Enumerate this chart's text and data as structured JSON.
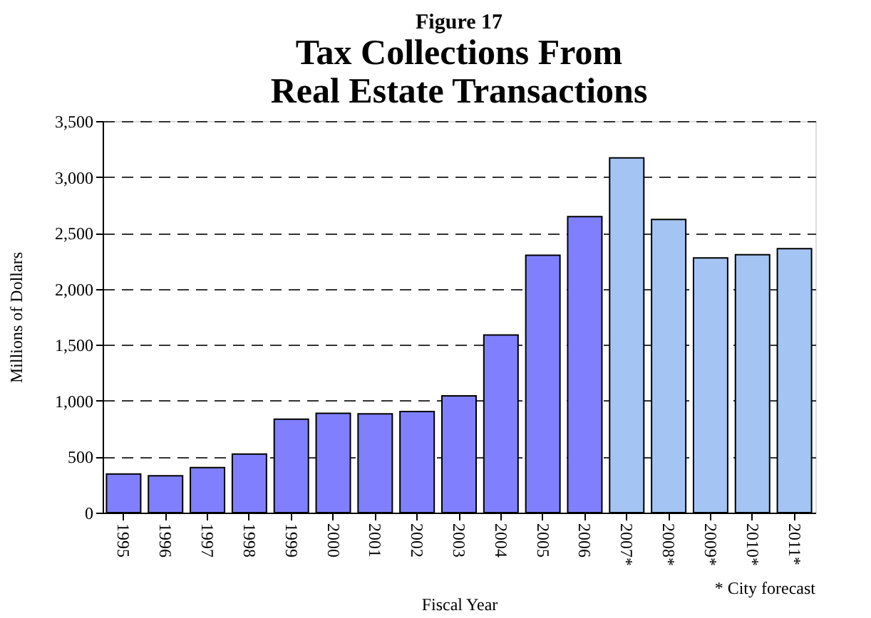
{
  "chart_data": {
    "type": "bar",
    "title": "Figure 17",
    "subtitle": "Tax Collections From Real Estate Transactions",
    "xlabel": "Fiscal Year",
    "ylabel": "Millions of Dollars",
    "categories": [
      "1995",
      "1996",
      "1997",
      "1998",
      "1999",
      "2000",
      "2001",
      "2002",
      "2003",
      "2004",
      "2005",
      "2006",
      "2007*",
      "2008*",
      "2009*",
      "2010*",
      "2011*"
    ],
    "values": [
      345,
      330,
      403,
      524,
      835,
      888,
      883,
      903,
      1044,
      1587,
      2301,
      2646,
      3170,
      2621,
      2277,
      2306,
      2359
    ],
    "colors": [
      "#8080ff",
      "#8080ff",
      "#8080ff",
      "#8080ff",
      "#8080ff",
      "#8080ff",
      "#8080ff",
      "#8080ff",
      "#8080ff",
      "#8080ff",
      "#8080ff",
      "#8080ff",
      "#a4c4f4",
      "#a4c4f4",
      "#a4c4f4",
      "#a4c4f4",
      "#a4c4f4"
    ],
    "ylim": [
      0,
      3500
    ],
    "yticks": [
      {
        "value": 0,
        "label": "0"
      },
      {
        "value": 500,
        "label": "500"
      },
      {
        "value": 1000,
        "label": "1,000"
      },
      {
        "value": 1500,
        "label": "1,500"
      },
      {
        "value": 2000,
        "label": "2,000"
      },
      {
        "value": 2500,
        "label": "2,500"
      },
      {
        "value": 3000,
        "label": "3,000"
      },
      {
        "value": 3500,
        "label": "3,500"
      }
    ],
    "grid": "y",
    "line_style": "dashed",
    "annotations": [
      "* City forecast"
    ]
  }
}
